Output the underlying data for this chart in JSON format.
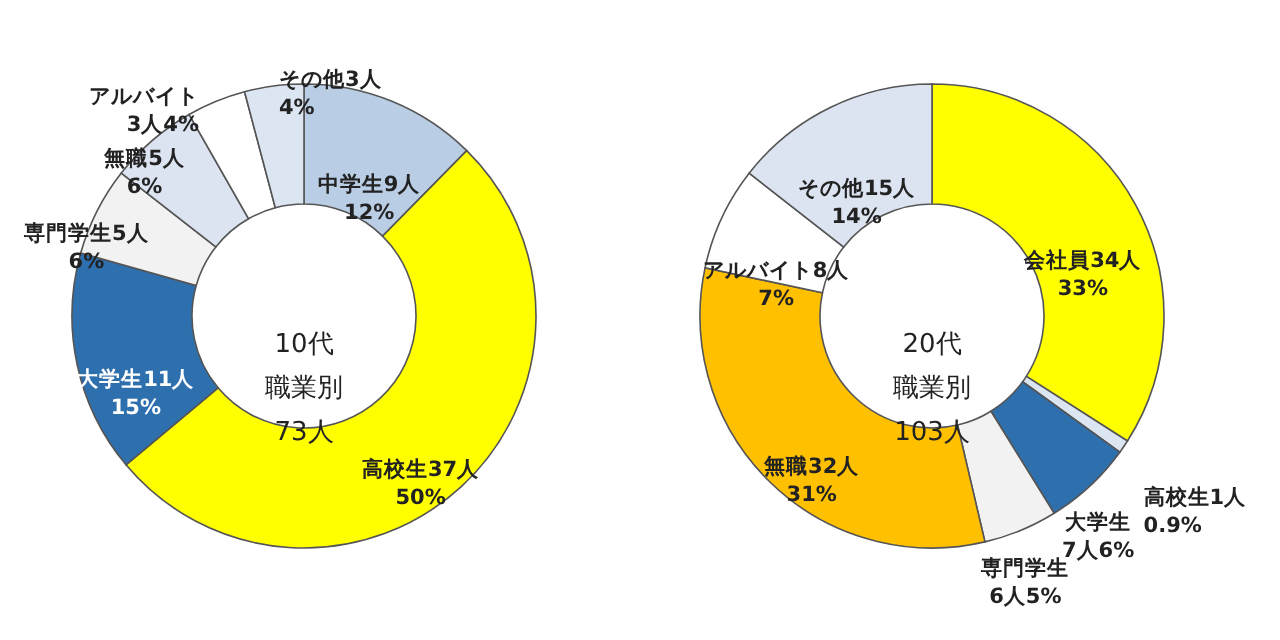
{
  "chart_data": [
    {
      "type": "donut",
      "annotations": [
        "10代",
        "職業別",
        "73人"
      ],
      "categories": [
        "中学生9人",
        "高校生37人",
        "大学生11人",
        "専門学生5人",
        "無職5人",
        "アルバイト",
        "その他3人"
      ],
      "values": [
        12,
        50,
        15,
        6,
        6,
        4,
        4
      ],
      "value_labels": [
        "12%",
        "50%",
        "15%",
        "6%",
        "6%",
        "3人4%",
        "4%"
      ],
      "colors": [
        "#b9cde5",
        "#ffff00",
        "#2e6fae",
        "#f2f2f2",
        "#dce3f1",
        "#ffffff",
        "#dce6f2"
      ]
    },
    {
      "type": "donut",
      "annotations": [
        "20代",
        "職業別",
        "103人"
      ],
      "categories": [
        "会社員34人",
        "高校生1人",
        "大学生",
        "専門学生",
        "無職32人",
        "アルバイト8人",
        "その他15人"
      ],
      "values": [
        33,
        0.9,
        6,
        5,
        31,
        7,
        14
      ],
      "value_labels": [
        "33%",
        "0.9%",
        "7人6%",
        "6人5%",
        "31%",
        "7%",
        "14%"
      ],
      "colors": [
        "#ffff00",
        "#dce6f2",
        "#2e6fae",
        "#f2f2f2",
        "#ffc000",
        "#ffffff",
        "#dce3f1"
      ]
    }
  ]
}
